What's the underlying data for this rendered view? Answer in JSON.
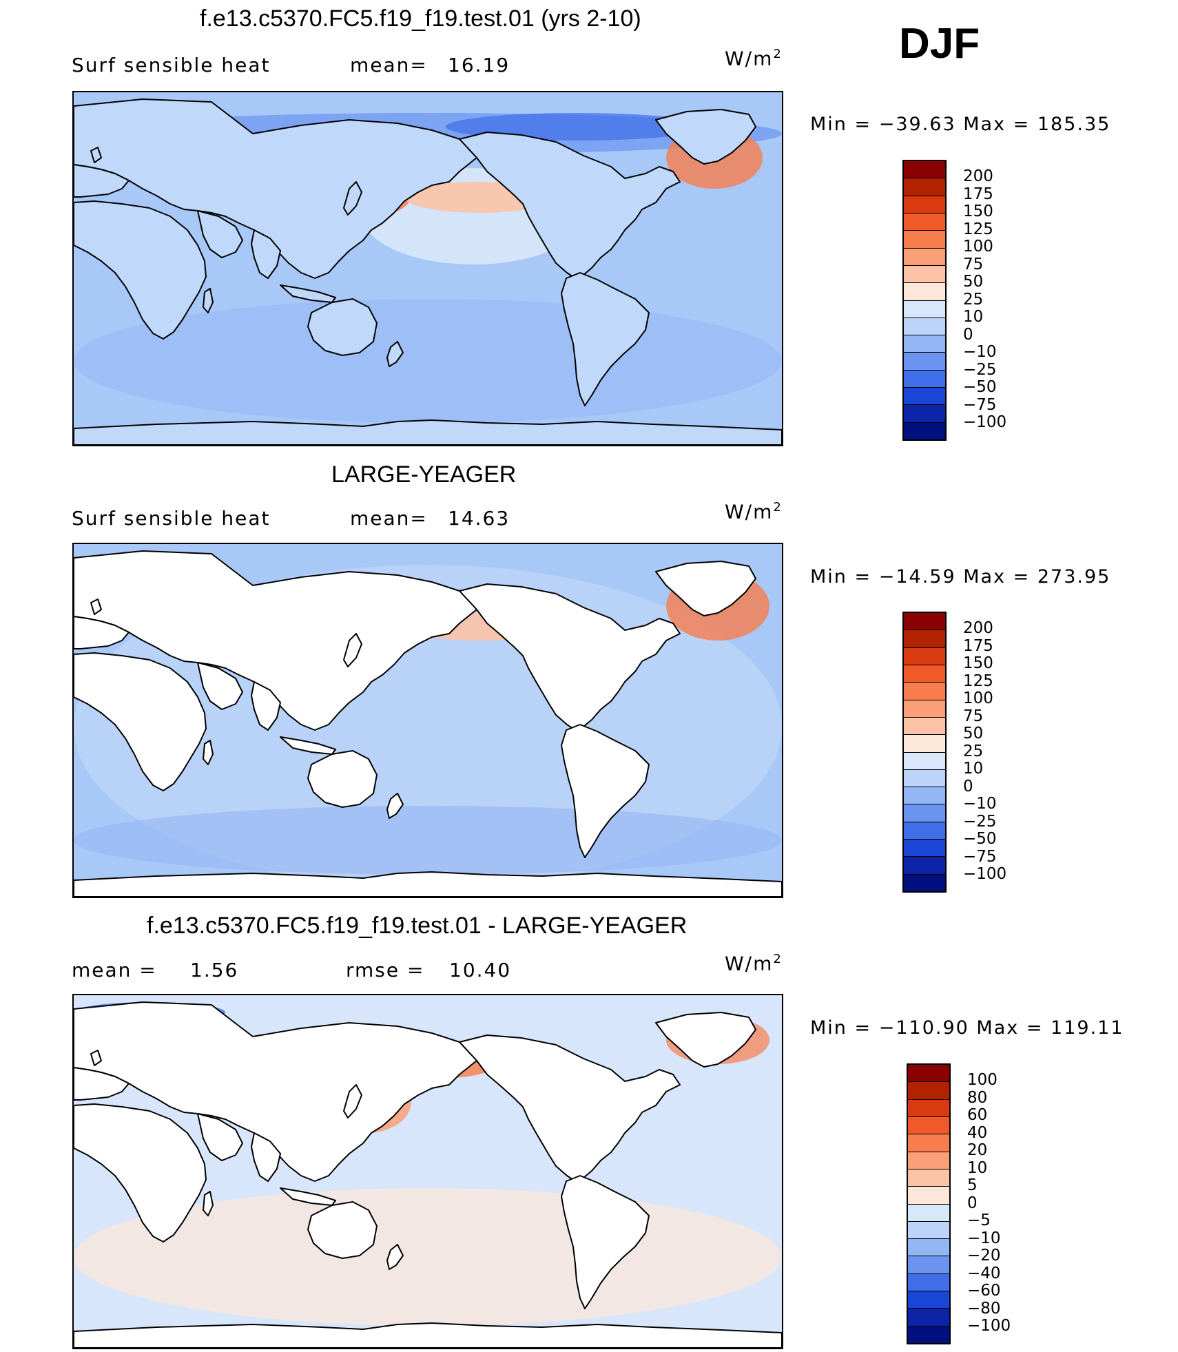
{
  "season": "DJF",
  "panels": [
    {
      "title": "f.e13.c5370.FC5.f19_f19.test.01 (yrs 2-10)",
      "left_label": "Surf  sensible  heat",
      "stat1_label": "mean=",
      "stat1_value": "16.19",
      "stat2_label": "",
      "stat2_value": "",
      "units": "W/m",
      "units_exp": "2",
      "min_label": "Min  =",
      "min_value": "−39.63",
      "max_label": "Max  =",
      "max_value": "185.35",
      "ocean_color": "#a8c8f8",
      "land_color": "#c0d8fa",
      "colorbar": {
        "levels": [
          "200",
          "175",
          "150",
          "125",
          "100",
          "75",
          "50",
          "25",
          "10",
          "0",
          "−10",
          "−25",
          "−50",
          "−75",
          "−100"
        ],
        "colors": [
          "#8b0000",
          "#b22200",
          "#d93a10",
          "#f05a28",
          "#f87d4c",
          "#fa9f78",
          "#fcc3a6",
          "#fde7d8",
          "#d8e8fa",
          "#bcd4f8",
          "#94b6f4",
          "#6a94f0",
          "#3f6ee8",
          "#1a46d6",
          "#0b24a8",
          "#001080"
        ]
      }
    },
    {
      "title": "LARGE-YEAGER",
      "left_label": "Surf  sensible  heat",
      "stat1_label": "mean=",
      "stat1_value": "14.63",
      "stat2_label": "",
      "stat2_value": "",
      "units": "W/m",
      "units_exp": "2",
      "min_label": "Min  =",
      "min_value": "−14.59",
      "max_label": "Max  =",
      "max_value": "273.95",
      "ocean_color": "#a8c8f8",
      "land_color": "#ffffff",
      "colorbar": {
        "levels": [
          "200",
          "175",
          "150",
          "125",
          "100",
          "75",
          "50",
          "25",
          "10",
          "0",
          "−10",
          "−25",
          "−50",
          "−75",
          "−100"
        ],
        "colors": [
          "#8b0000",
          "#b22200",
          "#d93a10",
          "#f05a28",
          "#f87d4c",
          "#fa9f78",
          "#fcc3a6",
          "#fde7d8",
          "#d8e8fa",
          "#bcd4f8",
          "#94b6f4",
          "#6a94f0",
          "#3f6ee8",
          "#1a46d6",
          "#0b24a8",
          "#001080"
        ]
      }
    },
    {
      "title": "f.e13.c5370.FC5.f19_f19.test.01 - LARGE-YEAGER",
      "left_label": "mean  =",
      "stat1_label": "",
      "stat1_value": "1.56",
      "stat2_label": "rmse  =",
      "stat2_value": "10.40",
      "units": "W/m",
      "units_exp": "2",
      "min_label": "Min  =",
      "min_value": "−110.90",
      "max_label": "Max  =",
      "max_value": "119.11",
      "ocean_color": "#d8e6fb",
      "land_color": "#ffffff",
      "colorbar": {
        "levels": [
          "100",
          "80",
          "60",
          "40",
          "20",
          "10",
          "5",
          "0",
          "−5",
          "−10",
          "−20",
          "−40",
          "−60",
          "−80",
          "−100"
        ],
        "colors": [
          "#8b0000",
          "#b22200",
          "#d93a10",
          "#f05a28",
          "#f87d4c",
          "#fa9f78",
          "#fcc3a6",
          "#fde7d8",
          "#d8e8fa",
          "#bcd4f8",
          "#94b6f4",
          "#6a94f0",
          "#3f6ee8",
          "#1a46d6",
          "#0b24a8",
          "#001080"
        ]
      }
    }
  ]
}
